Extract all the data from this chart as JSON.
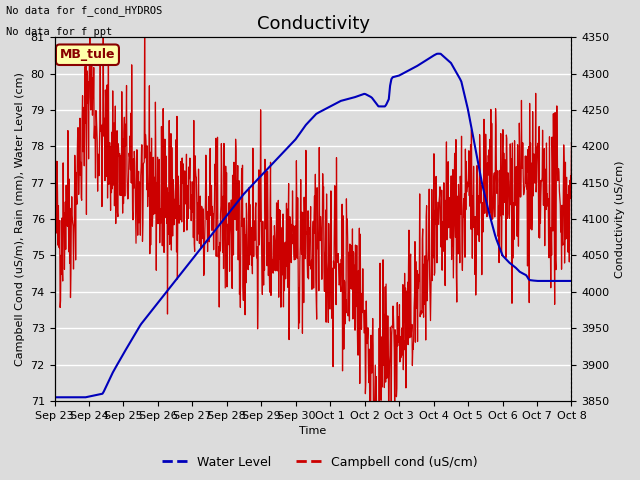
{
  "title": "Conductivity",
  "left_ylabel": "Campbell Cond (uS/m), Rain (mm), Water Level (cm)",
  "right_ylabel": "Conductivity (uS/cm)",
  "xlabel": "Time",
  "top_text_line1": "No data for f_cond_HYDROS",
  "top_text_line2": "No data for f_ppt",
  "box_label": "MB_tule",
  "ylim_left": [
    71.0,
    81.0
  ],
  "ylim_right": [
    3850,
    4350
  ],
  "yticks_left": [
    71.0,
    72.0,
    73.0,
    74.0,
    75.0,
    76.0,
    77.0,
    78.0,
    79.0,
    80.0,
    81.0
  ],
  "yticks_right": [
    3850,
    3900,
    3950,
    4000,
    4050,
    4100,
    4150,
    4200,
    4250,
    4300,
    4350
  ],
  "xtick_labels": [
    "Sep 23",
    "Sep 24",
    "Sep 25",
    "Sep 26",
    "Sep 27",
    "Sep 28",
    "Sep 29",
    "Sep 30",
    "Oct 1",
    "Oct 2",
    "Oct 3",
    "Oct 4",
    "Oct 5",
    "Oct 6",
    "Oct 7",
    "Oct 8"
  ],
  "background_color": "#dcdcdc",
  "water_level_color": "#0000bb",
  "campbell_color": "#cc0000",
  "title_fontsize": 13,
  "label_fontsize": 8,
  "tick_fontsize": 8,
  "water_keypoints": [
    [
      0,
      71.1
    ],
    [
      0.9,
      71.1
    ],
    [
      1.0,
      71.12
    ],
    [
      1.4,
      71.2
    ],
    [
      1.7,
      71.8
    ],
    [
      2.0,
      72.3
    ],
    [
      2.5,
      73.1
    ],
    [
      3.0,
      73.7
    ],
    [
      3.5,
      74.3
    ],
    [
      4.0,
      74.9
    ],
    [
      4.5,
      75.5
    ],
    [
      5.0,
      76.1
    ],
    [
      5.5,
      76.7
    ],
    [
      6.0,
      77.2
    ],
    [
      6.5,
      77.7
    ],
    [
      7.0,
      78.2
    ],
    [
      7.3,
      78.6
    ],
    [
      7.6,
      78.9
    ],
    [
      8.0,
      79.1
    ],
    [
      8.3,
      79.25
    ],
    [
      8.7,
      79.35
    ],
    [
      9.0,
      79.45
    ],
    [
      9.2,
      79.35
    ],
    [
      9.4,
      79.1
    ],
    [
      9.5,
      79.1
    ],
    [
      9.6,
      79.1
    ],
    [
      9.7,
      79.3
    ],
    [
      9.75,
      79.8
    ],
    [
      9.8,
      79.9
    ],
    [
      10.0,
      79.95
    ],
    [
      10.5,
      80.2
    ],
    [
      11.0,
      80.5
    ],
    [
      11.1,
      80.55
    ],
    [
      11.2,
      80.55
    ],
    [
      11.5,
      80.3
    ],
    [
      11.8,
      79.8
    ],
    [
      12.0,
      79.0
    ],
    [
      12.2,
      78.0
    ],
    [
      12.4,
      77.0
    ],
    [
      12.6,
      76.2
    ],
    [
      12.8,
      75.5
    ],
    [
      13.0,
      75.0
    ],
    [
      13.2,
      74.8
    ],
    [
      13.4,
      74.65
    ],
    [
      13.5,
      74.55
    ],
    [
      13.6,
      74.5
    ],
    [
      13.7,
      74.45
    ],
    [
      13.75,
      74.35
    ],
    [
      13.8,
      74.32
    ],
    [
      14.0,
      74.3
    ],
    [
      15.0,
      74.3
    ]
  ],
  "campbell_base_keypoints": [
    [
      0.0,
      4100
    ],
    [
      0.2,
      4080
    ],
    [
      0.35,
      4130
    ],
    [
      0.5,
      4090
    ],
    [
      0.7,
      4180
    ],
    [
      0.85,
      4200
    ],
    [
      1.0,
      4300
    ],
    [
      1.05,
      4295
    ],
    [
      1.15,
      4250
    ],
    [
      1.3,
      4200
    ],
    [
      1.4,
      4230
    ],
    [
      1.5,
      4210
    ],
    [
      1.7,
      4190
    ],
    [
      1.9,
      4170
    ],
    [
      2.1,
      4180
    ],
    [
      2.3,
      4155
    ],
    [
      2.5,
      4140
    ],
    [
      2.7,
      4160
    ],
    [
      2.9,
      4145
    ],
    [
      3.1,
      4130
    ],
    [
      3.3,
      4150
    ],
    [
      3.5,
      4120
    ],
    [
      3.7,
      4135
    ],
    [
      3.9,
      4110
    ],
    [
      4.1,
      4125
    ],
    [
      4.3,
      4100
    ],
    [
      4.5,
      4115
    ],
    [
      4.7,
      4090
    ],
    [
      4.9,
      4105
    ],
    [
      5.1,
      4085
    ],
    [
      5.3,
      4100
    ],
    [
      5.5,
      4080
    ],
    [
      5.7,
      4095
    ],
    [
      5.9,
      4075
    ],
    [
      6.1,
      4090
    ],
    [
      6.3,
      4070
    ],
    [
      6.5,
      4085
    ],
    [
      6.7,
      4065
    ],
    [
      6.9,
      4075
    ],
    [
      7.1,
      4060
    ],
    [
      7.3,
      4070
    ],
    [
      7.5,
      4055
    ],
    [
      7.7,
      4065
    ],
    [
      7.9,
      4050
    ],
    [
      8.1,
      4045
    ],
    [
      8.3,
      4040
    ],
    [
      8.5,
      4030
    ],
    [
      8.7,
      4020
    ],
    [
      8.9,
      3980
    ],
    [
      9.0,
      3960
    ],
    [
      9.1,
      3930
    ],
    [
      9.15,
      3900
    ],
    [
      9.2,
      3875
    ],
    [
      9.25,
      3870
    ],
    [
      9.3,
      3870
    ],
    [
      9.35,
      3875
    ],
    [
      9.4,
      3890
    ],
    [
      9.5,
      3900
    ],
    [
      9.6,
      3910
    ],
    [
      9.8,
      3920
    ],
    [
      10.0,
      3930
    ],
    [
      10.3,
      3960
    ],
    [
      10.5,
      3990
    ],
    [
      10.8,
      4020
    ],
    [
      11.0,
      4050
    ],
    [
      11.5,
      4100
    ],
    [
      12.0,
      4120
    ],
    [
      12.5,
      4140
    ],
    [
      13.0,
      4130
    ],
    [
      13.5,
      4150
    ],
    [
      14.0,
      4140
    ],
    [
      14.5,
      4120
    ],
    [
      15.0,
      4130
    ]
  ],
  "campbell_noise_seed": 42,
  "campbell_noise_scale": 55
}
